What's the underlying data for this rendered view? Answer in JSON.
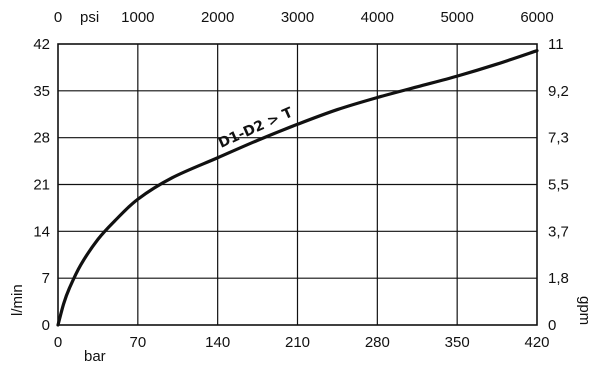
{
  "chart_data": {
    "type": "line",
    "title": "",
    "x_bottom": {
      "unit_label": "bar",
      "range": [
        0,
        420
      ],
      "ticks": [
        0,
        70,
        140,
        210,
        280,
        350,
        420
      ]
    },
    "x_top": {
      "unit_label": "psi",
      "ticks": [
        0,
        1000,
        2000,
        3000,
        4000,
        5000,
        6000
      ]
    },
    "y_left": {
      "label": "l/min",
      "range": [
        0,
        42
      ],
      "ticks": [
        0,
        7,
        14,
        21,
        28,
        35,
        42
      ]
    },
    "y_right": {
      "label": "gpm",
      "ticks": [
        "0",
        "1,8",
        "3,7",
        "5,5",
        "7,3",
        "9,2",
        "11"
      ]
    },
    "grid": true,
    "series": [
      {
        "name": "D1-D2 > T",
        "x": [
          0,
          5,
          10,
          20,
          35,
          50,
          70,
          100,
          140,
          175,
          210,
          245,
          280,
          315,
          350,
          385,
          420
        ],
        "y": [
          0,
          3.2,
          5.5,
          9,
          12.8,
          15.6,
          18.8,
          22,
          25,
          27.6,
          30,
          32.2,
          34,
          35.6,
          37.2,
          39,
          41
        ]
      }
    ]
  }
}
